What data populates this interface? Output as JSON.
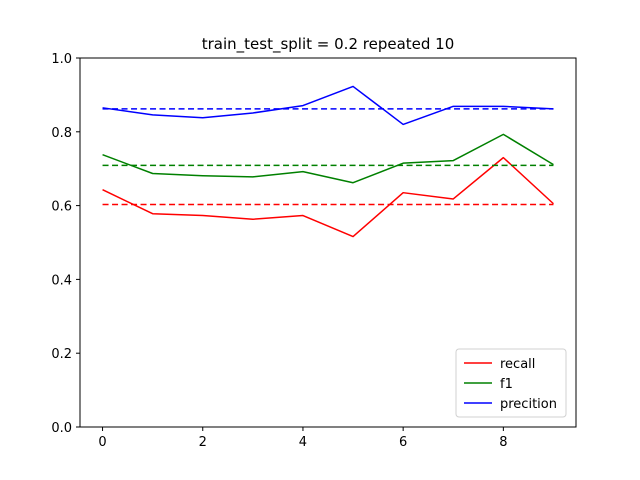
{
  "chart_data": {
    "type": "line",
    "title": "train_test_split = 0.2 repeated 10",
    "xlabel": "",
    "ylabel": "",
    "xlim": [
      -0.45,
      9.45
    ],
    "ylim": [
      0.0,
      1.0
    ],
    "xticks": [
      0,
      2,
      4,
      6,
      8
    ],
    "xtick_labels": [
      "0",
      "2",
      "4",
      "6",
      "8"
    ],
    "yticks": [
      0.0,
      0.2,
      0.4,
      0.6,
      0.8,
      1.0
    ],
    "ytick_labels": [
      "0.0",
      "0.2",
      "0.4",
      "0.6",
      "0.8",
      "1.0"
    ],
    "grid": false,
    "legend_position": "lower-right",
    "x": [
      0,
      1,
      2,
      3,
      4,
      5,
      6,
      7,
      8,
      9
    ],
    "series": [
      {
        "name": "recall",
        "color": "#ff0000",
        "values": [
          0.643,
          0.578,
          0.573,
          0.563,
          0.573,
          0.516,
          0.635,
          0.618,
          0.73,
          0.605
        ],
        "mean": 0.603
      },
      {
        "name": "f1",
        "color": "#008000",
        "values": [
          0.738,
          0.687,
          0.681,
          0.678,
          0.692,
          0.662,
          0.715,
          0.722,
          0.793,
          0.711
        ],
        "mean": 0.709
      },
      {
        "name": "precition",
        "color": "#0000ff",
        "values": [
          0.865,
          0.846,
          0.838,
          0.851,
          0.871,
          0.923,
          0.82,
          0.869,
          0.869,
          0.862
        ],
        "mean": 0.862
      }
    ]
  }
}
